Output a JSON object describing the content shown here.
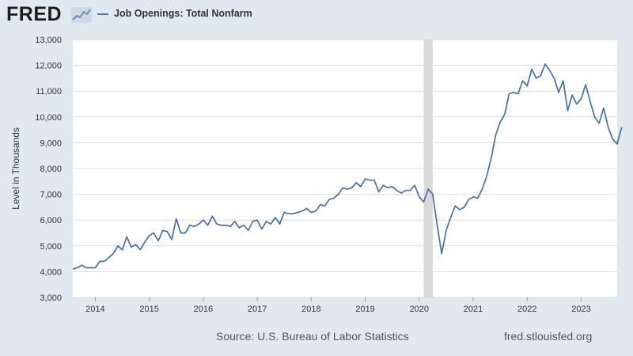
{
  "header": {
    "logo_text": "FRED",
    "series_title": "Job Openings: Total Nonfarm"
  },
  "footer": {
    "source": "Source: U.S. Bureau of Labor Statistics",
    "url": "fred.stlouisfed.org"
  },
  "colors": {
    "background": "#e1e9f0",
    "plot_background": "#ffffff",
    "series": "#4572a7",
    "gridline": "#dcdcdc",
    "recession": "#d9d9d9"
  },
  "icons": {
    "logo_chart": "line-chart-icon"
  },
  "chart_data": {
    "type": "line",
    "title": "Job Openings: Total Nonfarm",
    "xlabel": "",
    "ylabel": "Level in Thousands",
    "ylim": [
      3000,
      13000
    ],
    "yticks": [
      3000,
      4000,
      5000,
      6000,
      7000,
      8000,
      9000,
      10000,
      11000,
      12000,
      13000
    ],
    "ytick_labels": [
      "3,000",
      "4,000",
      "5,000",
      "6,000",
      "7,000",
      "8,000",
      "9,000",
      "10,000",
      "11,000",
      "12,000",
      "13,000"
    ],
    "xlim": [
      2013.583,
      2023.667
    ],
    "xticks": [
      2014,
      2015,
      2016,
      2017,
      2018,
      2019,
      2020,
      2021,
      2022,
      2023
    ],
    "xtick_labels": [
      "2014",
      "2015",
      "2016",
      "2017",
      "2018",
      "2019",
      "2020",
      "2021",
      "2022",
      "2023"
    ],
    "recession": {
      "start": 2020.083,
      "end": 2020.25
    },
    "grid": true,
    "legend": "top-left",
    "start_year": 2013,
    "start_month": 8,
    "series": [
      {
        "name": "Job Openings: Total Nonfarm",
        "values": [
          4100,
          4150,
          4250,
          4150,
          4150,
          4150,
          4400,
          4400,
          4550,
          4700,
          5000,
          4850,
          5350,
          4950,
          5050,
          4850,
          5150,
          5400,
          5500,
          5200,
          5600,
          5550,
          5250,
          6050,
          5500,
          5500,
          5800,
          5750,
          5850,
          6000,
          5800,
          6150,
          5850,
          5800,
          5800,
          5750,
          5950,
          5700,
          5800,
          5600,
          5950,
          6000,
          5650,
          5950,
          5850,
          6100,
          5850,
          6300,
          6250,
          6250,
          6300,
          6350,
          6450,
          6300,
          6350,
          6600,
          6550,
          6800,
          6850,
          7000,
          7250,
          7200,
          7250,
          7450,
          7300,
          7600,
          7550,
          7550,
          7100,
          7350,
          7250,
          7300,
          7150,
          7050,
          7150,
          7150,
          7350,
          6900,
          6700,
          7200,
          7000,
          5800,
          4700,
          5600,
          6100,
          6550,
          6400,
          6500,
          6800,
          6900,
          6850,
          7200,
          7700,
          8400,
          9300,
          9800,
          10100,
          10900,
          10950,
          10900,
          11400,
          11200,
          11850,
          11500,
          11600,
          12050,
          11800,
          11500,
          10950,
          11400,
          10250,
          10850,
          10500,
          10700,
          11250,
          10600,
          10000,
          9750,
          10350,
          9600,
          9150,
          8950,
          9600
        ]
      }
    ]
  }
}
